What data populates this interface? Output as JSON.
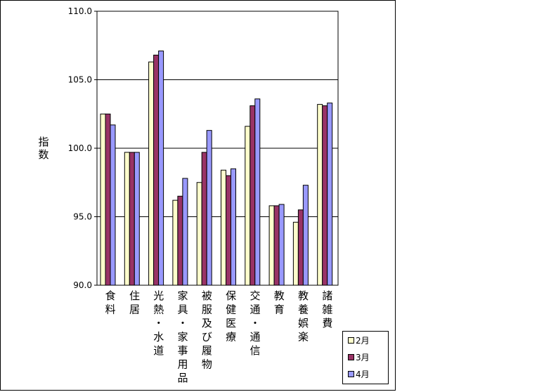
{
  "chart_data": {
    "type": "bar",
    "ylabel": "指数",
    "ylim": [
      90.0,
      110.0
    ],
    "yticks": [
      "90.0",
      "95.0",
      "100.0",
      "105.0",
      "110.0"
    ],
    "categories": [
      "食料",
      "住居",
      "光熱・水道",
      "家具・家事用品",
      "被服及び履物",
      "保健医療",
      "交通・通信",
      "教育",
      "教養娯楽",
      "諸雑費"
    ],
    "series": [
      {
        "name": "2月",
        "color": "#ffffcc",
        "values": [
          102.5,
          99.7,
          106.3,
          96.2,
          97.5,
          98.4,
          101.6,
          95.8,
          94.6,
          103.2
        ]
      },
      {
        "name": "3月",
        "color": "#993366",
        "values": [
          102.5,
          99.7,
          106.8,
          96.5,
          99.7,
          98.0,
          103.1,
          95.8,
          95.5,
          103.1
        ]
      },
      {
        "name": "4月",
        "color": "#9999ff",
        "values": [
          101.7,
          99.7,
          107.1,
          97.8,
          101.3,
          98.5,
          103.6,
          95.9,
          97.3,
          103.3
        ]
      }
    ],
    "grid": true,
    "legend": "bottom-right"
  }
}
